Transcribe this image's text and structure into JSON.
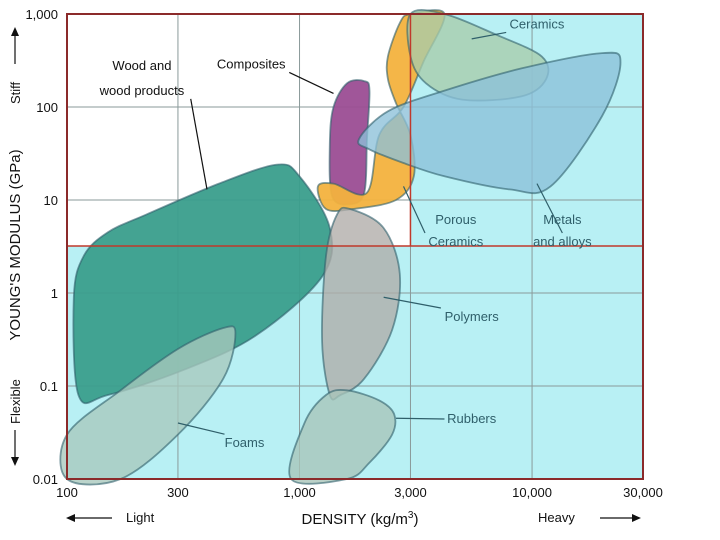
{
  "chart_data": {
    "type": "bubble-region",
    "xlabel": "DENSITY (kg/m",
    "xlabel_sup": "3",
    "xlabel_end": ")",
    "ylabel": "YOUNG'S MODULUS (GPa)",
    "x_scale": "log",
    "y_scale": "log",
    "xlim": [
      100,
      30000
    ],
    "ylim": [
      0.01,
      1000
    ],
    "x_ticks": [
      {
        "value": 100,
        "label": "100"
      },
      {
        "value": 300,
        "label": "300"
      },
      {
        "value": 1000,
        "label": "1,000"
      },
      {
        "value": 3000,
        "label": "3,000"
      },
      {
        "value": 10000,
        "label": "10,000"
      },
      {
        "value": 30000,
        "label": "30,000"
      }
    ],
    "y_ticks": [
      {
        "value": 0.01,
        "label": "0.01"
      },
      {
        "value": 0.1,
        "label": "0.1"
      },
      {
        "value": 1,
        "label": "1"
      },
      {
        "value": 10,
        "label": "10"
      },
      {
        "value": 100,
        "label": "100"
      },
      {
        "value": 1000,
        "label": "1,000"
      }
    ],
    "x_direction": {
      "low": "Light",
      "high": "Heavy"
    },
    "y_direction": {
      "low": "Flexible",
      "high": "Stiff"
    },
    "highlight": {
      "x_threshold": 3000,
      "y_threshold": 3.2
    },
    "regions": [
      {
        "name": "Wood and wood products",
        "color": "#3a9e8c",
        "boundary": [
          [
            112,
            0.08
          ],
          [
            107,
            0.9
          ],
          [
            118,
            2.5
          ],
          [
            150,
            4.5
          ],
          [
            220,
            7
          ],
          [
            450,
            15
          ],
          [
            800,
            24
          ],
          [
            1000,
            18
          ],
          [
            1350,
            5
          ],
          [
            1250,
            1.5
          ],
          [
            650,
            0.35
          ],
          [
            320,
            0.15
          ],
          [
            150,
            0.08
          ]
        ]
      },
      {
        "name": "Foams",
        "color": "#a8c8bc",
        "boundary": [
          [
            100,
            0.03
          ],
          [
            170,
            0.09
          ],
          [
            300,
            0.25
          ],
          [
            470,
            0.42
          ],
          [
            530,
            0.37
          ],
          [
            470,
            0.12
          ],
          [
            300,
            0.03
          ],
          [
            170,
            0.01
          ],
          [
            100,
            0.01
          ]
        ]
      },
      {
        "name": "Composites",
        "color": "#9b4d93",
        "boundary": [
          [
            1400,
            100
          ],
          [
            1600,
            180
          ],
          [
            1900,
            190
          ],
          [
            2000,
            150
          ],
          [
            1950,
            45
          ],
          [
            1900,
            12
          ],
          [
            1650,
            9
          ],
          [
            1380,
            11
          ],
          [
            1350,
            40
          ]
        ]
      },
      {
        "name": "Porous Ceramics",
        "color": "#f3b23e",
        "boundary": [
          [
            1200,
            14
          ],
          [
            1300,
            8
          ],
          [
            1700,
            8
          ],
          [
            2600,
            10
          ],
          [
            3100,
            18
          ],
          [
            3000,
            50
          ],
          [
            2600,
            110
          ],
          [
            2400,
            200
          ],
          [
            2400,
            350
          ],
          [
            2700,
            800
          ],
          [
            3000,
            1000
          ],
          [
            4200,
            1000
          ],
          [
            3400,
            300
          ],
          [
            2800,
            100
          ],
          [
            2200,
            50
          ],
          [
            1950,
            12
          ],
          [
            1400,
            15
          ]
        ]
      },
      {
        "name": "Polymers",
        "color": "#b0aca8",
        "boundary": [
          [
            1350,
            0.08
          ],
          [
            1250,
            0.3
          ],
          [
            1300,
            2.5
          ],
          [
            1450,
            7
          ],
          [
            1650,
            8
          ],
          [
            2300,
            5
          ],
          [
            2700,
            1.6
          ],
          [
            2500,
            0.4
          ],
          [
            1900,
            0.12
          ],
          [
            1500,
            0.08
          ]
        ]
      },
      {
        "name": "Rubbers",
        "color": "#a8c4b8",
        "boundary": [
          [
            920,
            0.01
          ],
          [
            1050,
            0.04
          ],
          [
            1300,
            0.08
          ],
          [
            1600,
            0.09
          ],
          [
            2200,
            0.07
          ],
          [
            2550,
            0.05
          ],
          [
            2500,
            0.03
          ],
          [
            2000,
            0.015
          ],
          [
            1600,
            0.01
          ]
        ]
      },
      {
        "name": "Ceramics",
        "color": "#a8ccaa",
        "boundary": [
          [
            3000,
            1000
          ],
          [
            4200,
            1000
          ],
          [
            7000,
            600
          ],
          [
            11000,
            350
          ],
          [
            11500,
            200
          ],
          [
            9000,
            130
          ],
          [
            5000,
            120
          ],
          [
            3500,
            180
          ],
          [
            3000,
            350
          ]
        ]
      },
      {
        "name": "Metals and alloys",
        "color": "#8cc0d8",
        "boundary": [
          [
            1800,
            45
          ],
          [
            2400,
            90
          ],
          [
            4200,
            150
          ],
          [
            9000,
            260
          ],
          [
            20000,
            380
          ],
          [
            24000,
            300
          ],
          [
            20000,
            80
          ],
          [
            12000,
            14
          ],
          [
            8000,
            13
          ],
          [
            4200,
            18
          ],
          [
            2800,
            25
          ],
          [
            2000,
            35
          ]
        ]
      }
    ],
    "labels": [
      {
        "text": "Composites",
        "x": 620,
        "y": 260,
        "style": "dark",
        "pointer_to": [
          1400,
          140
        ]
      },
      {
        "text": "Wood and",
        "x": 210,
        "y": 250,
        "style": "dark"
      },
      {
        "text": "wood products",
        "x": 210,
        "y": 135,
        "style": "dark",
        "pointer_to": [
          400,
          13
        ]
      },
      {
        "text": "Ceramics",
        "x": 10500,
        "y": 700,
        "style": "teal",
        "pointer_to": [
          5500,
          540
        ]
      },
      {
        "text": "Porous",
        "x": 4700,
        "y": 5.5,
        "style": "teal"
      },
      {
        "text": "Ceramics",
        "x": 4700,
        "y": 3.2,
        "style": "teal",
        "pointer_to": [
          2800,
          14
        ]
      },
      {
        "text": "Metals",
        "x": 13500,
        "y": 5.5,
        "style": "teal"
      },
      {
        "text": "and alloys",
        "x": 13500,
        "y": 3.2,
        "style": "teal",
        "pointer_to": [
          10500,
          15
        ]
      },
      {
        "text": "Polymers",
        "x": 5500,
        "y": 0.5,
        "style": "teal",
        "pointer_to": [
          2300,
          0.9
        ]
      },
      {
        "text": "Rubbers",
        "x": 5500,
        "y": 0.04,
        "style": "teal",
        "pointer_to": [
          2600,
          0.045
        ]
      },
      {
        "text": "Foams",
        "x": 580,
        "y": 0.022,
        "style": "teal",
        "pointer_to": [
          300,
          0.04
        ]
      }
    ]
  }
}
